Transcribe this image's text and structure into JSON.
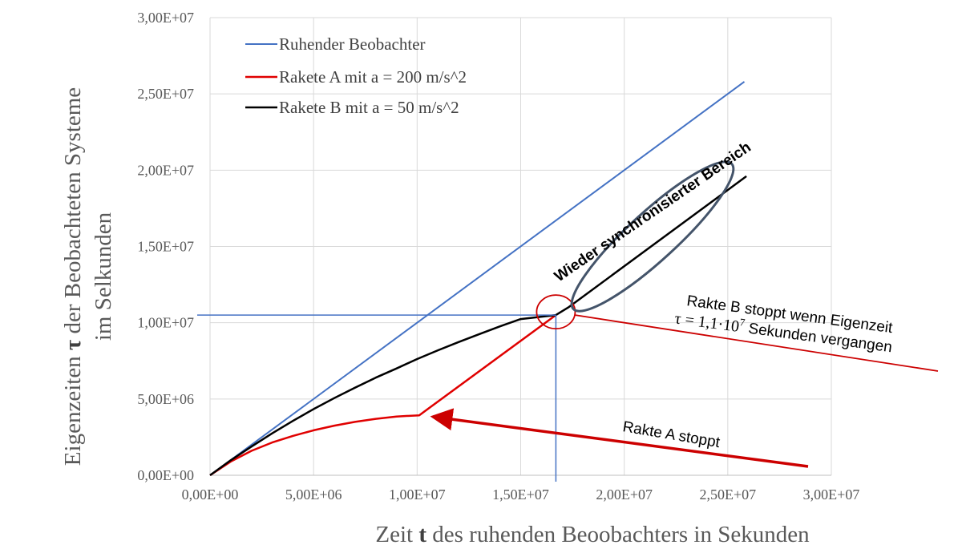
{
  "chart_data": {
    "type": "line",
    "xlabel_parts": [
      "Zeit ",
      "t",
      " des ruhenden Beoobachters in  Sekunden"
    ],
    "ylabel_line1_parts": [
      "Eigenzeiten ",
      "τ",
      " der Beobachteten Systeme"
    ],
    "ylabel_line2": "im Selkunden",
    "xlim": [
      0,
      30000000
    ],
    "ylim": [
      0,
      30000000
    ],
    "x_ticks": [
      "0,00E+00",
      "5,00E+06",
      "1,00E+07",
      "1,50E+07",
      "2,00E+07",
      "2,50E+07",
      "3,00E+07"
    ],
    "y_ticks": [
      "0,00E+00",
      "5,00E+06",
      "1,00E+07",
      "1,50E+07",
      "2,00E+07",
      "2,50E+07",
      "3,00E+07"
    ],
    "grid": true,
    "legend_position": "top-left",
    "series": [
      {
        "name": "Ruhender Beobachter",
        "color": "#4472c4",
        "points": [
          [
            0,
            0
          ],
          [
            25800000,
            25800000
          ]
        ]
      },
      {
        "name": "Rakete A mit a = 200 m/s^2",
        "color": "#e00000",
        "points": [
          [
            0,
            0
          ],
          [
            1000000,
            900000
          ],
          [
            2000000,
            1600000
          ],
          [
            3000000,
            2150000
          ],
          [
            4000000,
            2580000
          ],
          [
            5000000,
            2950000
          ],
          [
            6000000,
            3250000
          ],
          [
            7000000,
            3500000
          ],
          [
            8000000,
            3700000
          ],
          [
            9000000,
            3850000
          ],
          [
            10100000,
            3930000
          ],
          [
            16700000,
            10500000
          ]
        ]
      },
      {
        "name": "Rakete B mit a = 50 m/s^2",
        "color": "#000000",
        "points": [
          [
            0,
            0
          ],
          [
            1000000,
            980000
          ],
          [
            2000000,
            1880000
          ],
          [
            3000000,
            2750000
          ],
          [
            4000000,
            3560000
          ],
          [
            5000000,
            4340000
          ],
          [
            6000000,
            5060000
          ],
          [
            7000000,
            5740000
          ],
          [
            8000000,
            6400000
          ],
          [
            9000000,
            7000000
          ],
          [
            10000000,
            7620000
          ],
          [
            11000000,
            8190000
          ],
          [
            12000000,
            8730000
          ],
          [
            13000000,
            9250000
          ],
          [
            14000000,
            9760000
          ],
          [
            15000000,
            10240000
          ],
          [
            16700000,
            10500000
          ],
          [
            17300000,
            11000000
          ],
          [
            25900000,
            19600000
          ]
        ]
      }
    ],
    "annotations": {
      "region": "Wieder synchronisierter Bereich",
      "b_stop_line1": "Rakte B stoppt wenn Eigenzeit",
      "b_stop_line2_prefix": "τ = 1,1·10",
      "b_stop_line2_exp": "7",
      "b_stop_line2_suffix": "  Sekunden vergangen",
      "a_stop": "Rakte A stoppt"
    },
    "colors": {
      "grid": "#d9d9d9",
      "annotation_red": "#cc0000",
      "ellipse": "#44546a"
    }
  }
}
